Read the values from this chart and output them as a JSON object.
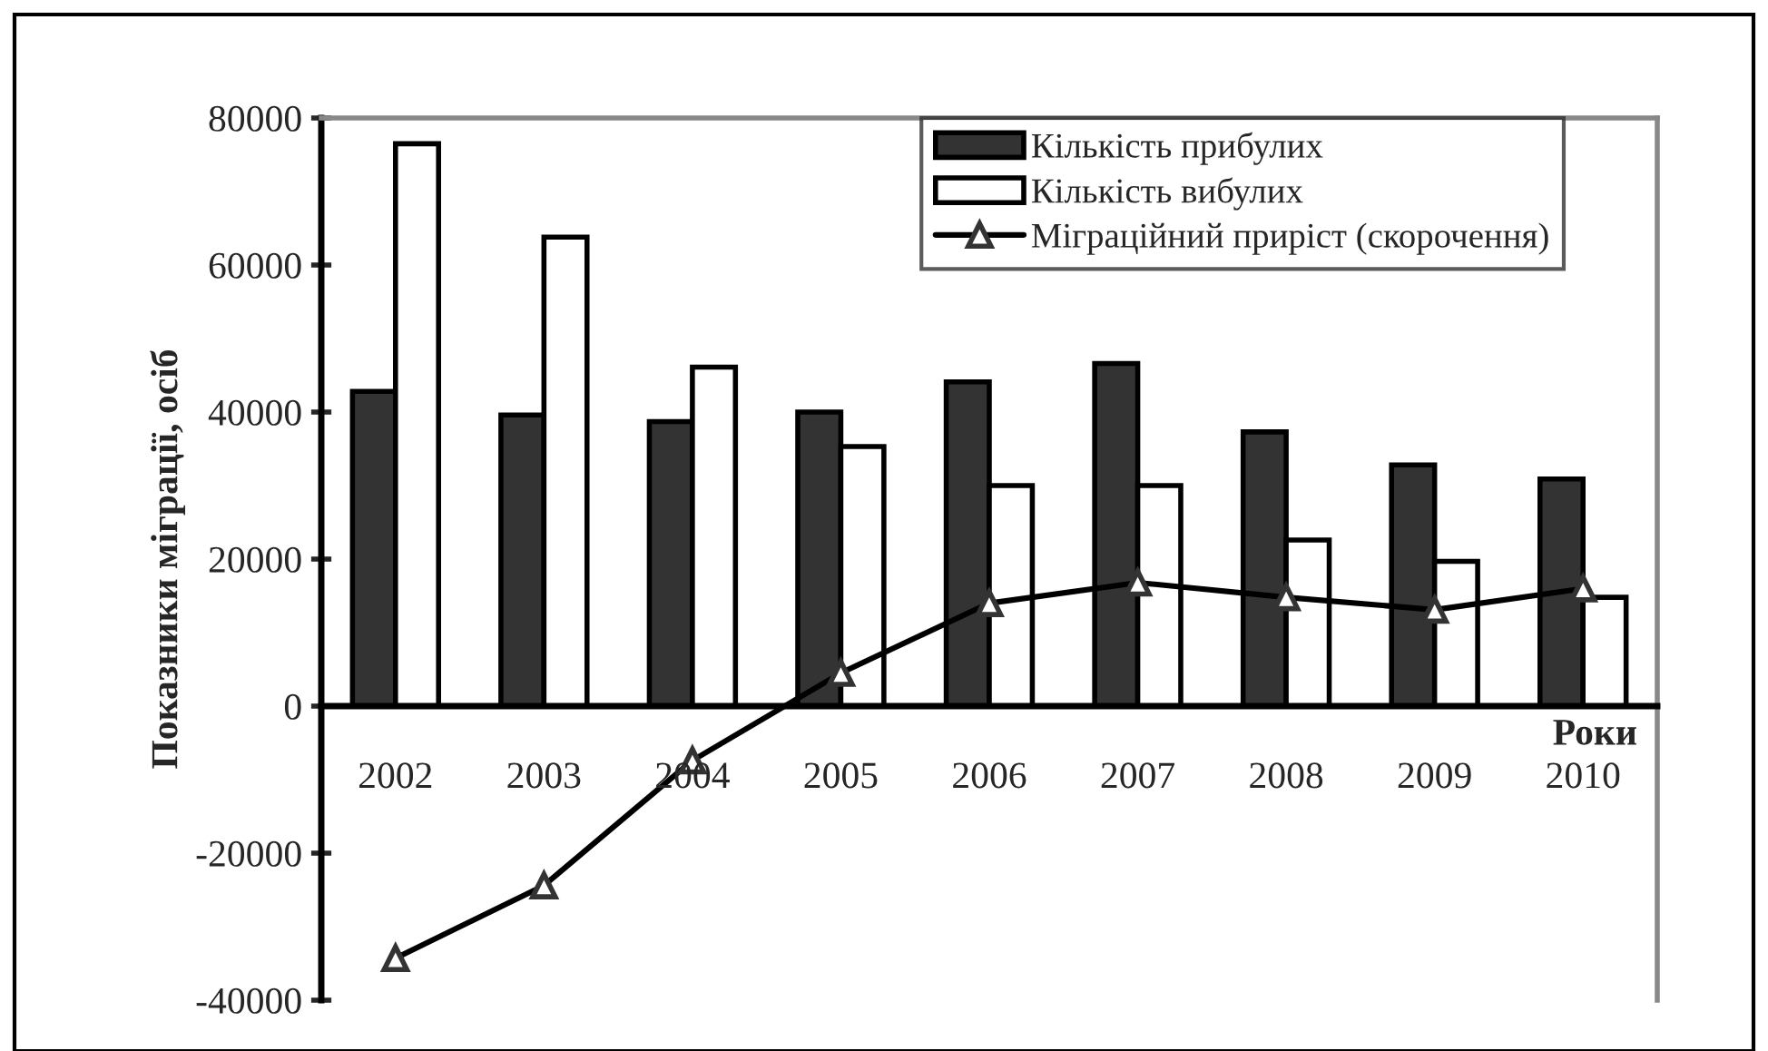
{
  "chart_data": {
    "type": "bar",
    "xlabel": "Роки",
    "ylabel": "Показники міграції, осіб",
    "categories": [
      "2002",
      "2003",
      "2004",
      "2005",
      "2006",
      "2007",
      "2008",
      "2009",
      "2010"
    ],
    "series": [
      {
        "name": "Кількість прибулих",
        "color": "#333333",
        "values": [
          42800,
          39600,
          38700,
          40000,
          44100,
          46600,
          37300,
          32800,
          30900
        ]
      },
      {
        "name": "Кількість вибулих",
        "color": "#ffffff",
        "values": [
          76500,
          63800,
          46100,
          35300,
          30000,
          30000,
          22600,
          19700,
          14800
        ]
      },
      {
        "name": "Міграційний приріст (скорочення)",
        "type": "line",
        "color": "#000000",
        "marker": "triangle",
        "values": [
          -34300,
          -24400,
          -7400,
          4500,
          14000,
          16800,
          14800,
          13100,
          16000
        ]
      }
    ],
    "ylim": [
      -40000,
      80000
    ],
    "yticks": [
      -40000,
      -20000,
      0,
      20000,
      40000,
      60000,
      80000
    ],
    "grid": false,
    "legend": "top right"
  }
}
